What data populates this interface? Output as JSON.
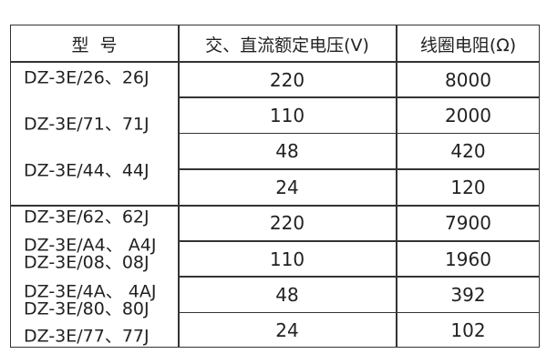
{
  "header": {
    "model": "型  号",
    "voltage": "交、直流额定电压(V)",
    "resistance": "线圈电阻(Ω)"
  },
  "groups": [
    {
      "models": [
        "DZ-3E/26、26J",
        "DZ-3E/71、71J",
        "DZ-3E/44、44J"
      ]
    },
    {
      "models": [
        "DZ-3E/62、62J",
        "DZ-3E/A4、 A4J",
        "DZ-3E/08、08J",
        "DZ-3E/4A、 4AJ",
        "DZ-3E/80、80J",
        "DZ-3E/77、77J"
      ]
    }
  ],
  "rows": [
    {
      "voltage": "220",
      "resistance": "8000"
    },
    {
      "voltage": "110",
      "resistance": "2000"
    },
    {
      "voltage": "48",
      "resistance": "420"
    },
    {
      "voltage": "24",
      "resistance": "120"
    },
    {
      "voltage": "220",
      "resistance": "7900"
    },
    {
      "voltage": "110",
      "resistance": "1960"
    },
    {
      "voltage": "48",
      "resistance": "392"
    },
    {
      "voltage": "24",
      "resistance": "102"
    }
  ]
}
